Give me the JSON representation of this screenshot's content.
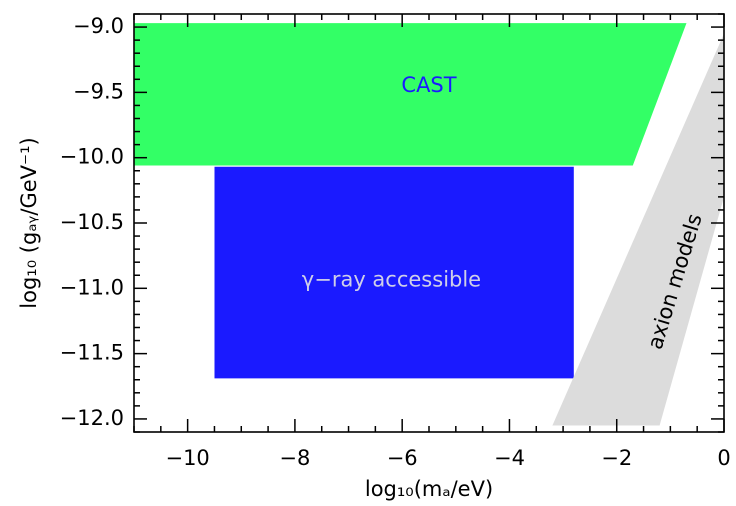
{
  "chart_data": {
    "type": "area",
    "title": "",
    "xlabel": "log₁₀(mₐ/eV)",
    "ylabel": "log₁₀ (gₐᵧ/GeV⁻¹)",
    "xlim": [
      -11.0,
      0.0
    ],
    "ylim": [
      -12.1,
      -8.9
    ],
    "x_ticks": [
      -10,
      -8,
      -6,
      -4,
      -2,
      0
    ],
    "x_tick_labels": [
      "−10",
      "−8",
      "−6",
      "−4",
      "−2",
      "0"
    ],
    "y_ticks": [
      -9.0,
      -9.5,
      -10.0,
      -10.5,
      -11.0,
      -11.5,
      -12.0
    ],
    "y_tick_labels": [
      "−9.0",
      "−9.5",
      "−10.0",
      "−10.5",
      "−11.0",
      "−11.5",
      "−12.0"
    ],
    "grid": false,
    "regions": [
      {
        "label": "CAST",
        "color": "#33ff66",
        "label_color": "#1a1aff",
        "label_at": [
          -5.5,
          -9.45
        ],
        "label_rotation": 0,
        "polygon": [
          [
            -11.0,
            -8.97
          ],
          [
            -0.7,
            -8.97
          ],
          [
            -1.7,
            -10.06
          ],
          [
            -11.0,
            -10.06
          ]
        ]
      },
      {
        "label": "γ−ray accessible",
        "color": "#1a1aff",
        "label_color": "#cfcfe8",
        "label_at": [
          -6.2,
          -10.94
        ],
        "label_rotation": 0,
        "polygon": [
          [
            -9.5,
            -10.07
          ],
          [
            -2.8,
            -10.07
          ],
          [
            -2.8,
            -11.69
          ],
          [
            -9.5,
            -11.69
          ]
        ]
      },
      {
        "label": "axion models",
        "color": "#dcdcdc",
        "label_color": "#000000",
        "label_at": [
          -0.9,
          -10.95
        ],
        "label_rotation": -73,
        "polygon": [
          [
            0.0,
            -9.05
          ],
          [
            0.0,
            -10.3
          ],
          [
            -1.2,
            -12.05
          ],
          [
            -3.2,
            -12.05
          ]
        ]
      }
    ]
  }
}
